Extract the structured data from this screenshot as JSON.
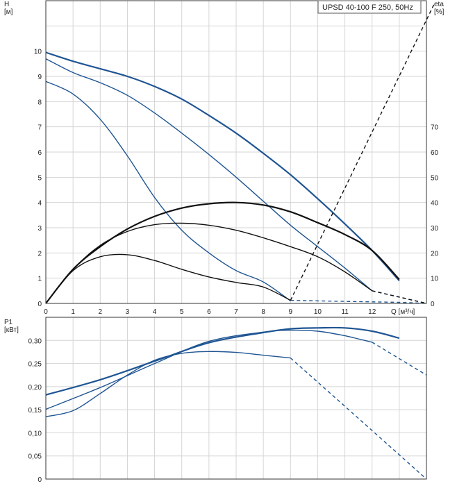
{
  "title_box": "UPSD 40-100 F 250, 50Hz",
  "colors": {
    "head": "#1f5593",
    "eta": "#111111",
    "power": "#1f5593",
    "grid": "#d4d4d4"
  },
  "chart_data": [
    {
      "type": "line",
      "panel": "upper",
      "ylabel_left": "H",
      "ylabel_left_unit": "[м]",
      "ylabel_right": "eta",
      "ylabel_right_unit": "[%]",
      "xlabel": "Q [м³/ч]",
      "xlim": [
        0,
        14
      ],
      "ylim": [
        0,
        12
      ],
      "ylim_right": [
        0,
        120
      ],
      "x_ticks": [
        "0",
        "1",
        "2",
        "3",
        "4",
        "5",
        "6",
        "7",
        "8",
        "9",
        "10",
        "11",
        "12"
      ],
      "y_ticks": [
        "0",
        "1",
        "2",
        "3",
        "4",
        "5",
        "6",
        "7",
        "8",
        "9",
        "10"
      ],
      "y_right_ticks": [
        "0",
        "10",
        "20",
        "30",
        "40",
        "50",
        "60",
        "70"
      ],
      "grid": true,
      "series": [
        {
          "kind": "head",
          "speed": "high",
          "style": "solid",
          "points": [
            [
              0,
              9.95
            ],
            [
              1,
              9.6
            ],
            [
              2,
              9.3
            ],
            [
              3,
              9.0
            ],
            [
              4,
              8.6
            ],
            [
              5,
              8.1
            ],
            [
              6,
              7.45
            ],
            [
              7,
              6.75
            ],
            [
              8,
              5.95
            ],
            [
              9,
              5.1
            ],
            [
              10,
              4.15
            ],
            [
              11,
              3.15
            ],
            [
              12,
              2.1
            ],
            [
              13,
              0.9
            ]
          ]
        },
        {
          "kind": "head",
          "speed": "medium",
          "style": "solid",
          "points": [
            [
              0,
              9.7
            ],
            [
              1,
              9.15
            ],
            [
              2,
              8.75
            ],
            [
              3,
              8.25
            ],
            [
              4,
              7.55
            ],
            [
              5,
              6.75
            ],
            [
              6,
              5.9
            ],
            [
              7,
              5.0
            ],
            [
              8,
              4.05
            ],
            [
              9,
              3.1
            ],
            [
              10,
              2.25
            ],
            [
              11,
              1.4
            ],
            [
              12,
              0.5
            ]
          ]
        },
        {
          "kind": "head",
          "speed": "low",
          "style": "solid",
          "points": [
            [
              0,
              8.8
            ],
            [
              1,
              8.3
            ],
            [
              2,
              7.3
            ],
            [
              3,
              5.85
            ],
            [
              4,
              4.2
            ],
            [
              5,
              2.9
            ],
            [
              6,
              2.0
            ],
            [
              7,
              1.3
            ],
            [
              8,
              0.85
            ],
            [
              9,
              0.1
            ]
          ]
        },
        {
          "kind": "head",
          "speed": "medium",
          "style": "dashed",
          "points": [
            [
              12,
              0.5
            ],
            [
              13,
              0.25
            ],
            [
              14,
              0.0
            ]
          ]
        },
        {
          "kind": "head",
          "speed": "low",
          "style": "dashed",
          "points": [
            [
              9,
              0.12
            ],
            [
              11,
              0.08
            ],
            [
              13,
              0.04
            ],
            [
              14,
              0.0
            ]
          ]
        },
        {
          "kind": "eta",
          "speed": "high",
          "style": "solid",
          "points": [
            [
              0,
              0
            ],
            [
              1,
              13.5
            ],
            [
              2,
              22.5
            ],
            [
              3,
              29.5
            ],
            [
              4,
              34.5
            ],
            [
              5,
              37.8
            ],
            [
              6,
              39.5
            ],
            [
              7,
              40.0
            ],
            [
              8,
              39.0
            ],
            [
              9,
              36.3
            ],
            [
              10,
              32.0
            ],
            [
              11,
              27.3
            ],
            [
              12,
              21.0
            ],
            [
              13,
              9.5
            ]
          ]
        },
        {
          "kind": "eta",
          "speed": "medium",
          "style": "solid",
          "points": [
            [
              0,
              0
            ],
            [
              1,
              13.5
            ],
            [
              2,
              23.0
            ],
            [
              3,
              28.5
            ],
            [
              4,
              31.2
            ],
            [
              5,
              31.8
            ],
            [
              6,
              31.0
            ],
            [
              7,
              29.0
            ],
            [
              8,
              26.0
            ],
            [
              9,
              22.5
            ],
            [
              10,
              18.5
            ],
            [
              11,
              12.5
            ],
            [
              12,
              5.0
            ]
          ]
        },
        {
          "kind": "eta",
          "speed": "low",
          "style": "solid",
          "points": [
            [
              0,
              0
            ],
            [
              1,
              13.0
            ],
            [
              2,
              18.5
            ],
            [
              3,
              19.3
            ],
            [
              4,
              17.0
            ],
            [
              5,
              13.5
            ],
            [
              6,
              10.5
            ],
            [
              7,
              8.3
            ],
            [
              8,
              6.5
            ],
            [
              9,
              1.2
            ]
          ]
        },
        {
          "kind": "eta",
          "speed": "high",
          "style": "dashed",
          "points": [
            [
              12,
              5.0
            ],
            [
              13,
              2.5
            ],
            [
              14,
              0.0
            ]
          ]
        },
        {
          "kind": "system",
          "style": "dashed",
          "points": [
            [
              9,
              0.12
            ],
            [
              14.3,
              11.9
            ]
          ]
        }
      ]
    },
    {
      "type": "line",
      "panel": "lower",
      "ylabel": "P1",
      "ylabel_unit": "[кВт]",
      "xlim": [
        0,
        14
      ],
      "ylim": [
        0,
        0.35
      ],
      "y_ticks": [
        "0",
        "0,05",
        "0,10",
        "0,15",
        "0,20",
        "0,25",
        "0,30"
      ],
      "grid": true,
      "series": [
        {
          "kind": "power",
          "speed": "high",
          "style": "solid",
          "points": [
            [
              0,
              0.182
            ],
            [
              2,
              0.215
            ],
            [
              4,
              0.255
            ],
            [
              6,
              0.295
            ],
            [
              8,
              0.317
            ],
            [
              9,
              0.325
            ],
            [
              10,
              0.327
            ],
            [
              11,
              0.327
            ],
            [
              12,
              0.32
            ],
            [
              13,
              0.305
            ]
          ]
        },
        {
          "kind": "power",
          "speed": "medium",
          "style": "solid",
          "points": [
            [
              0,
              0.151
            ],
            [
              2,
              0.198
            ],
            [
              4,
              0.25
            ],
            [
              6,
              0.298
            ],
            [
              8,
              0.318
            ],
            [
              9,
              0.322
            ],
            [
              10,
              0.32
            ],
            [
              11,
              0.31
            ],
            [
              12,
              0.296
            ]
          ]
        },
        {
          "kind": "power",
          "speed": "low",
          "style": "solid",
          "points": [
            [
              0,
              0.135
            ],
            [
              1,
              0.148
            ],
            [
              2,
              0.185
            ],
            [
              3,
              0.225
            ],
            [
              4,
              0.257
            ],
            [
              5,
              0.272
            ],
            [
              6,
              0.276
            ],
            [
              7,
              0.274
            ],
            [
              8,
              0.268
            ],
            [
              9,
              0.262
            ]
          ]
        },
        {
          "kind": "power",
          "speed": "medium",
          "style": "dashed",
          "points": [
            [
              12,
              0.296
            ],
            [
              14,
              0.225
            ]
          ]
        },
        {
          "kind": "power",
          "speed": "low",
          "style": "dashed",
          "points": [
            [
              9,
              0.262
            ],
            [
              12,
              0.105
            ],
            [
              14,
              0.0
            ]
          ]
        }
      ]
    }
  ]
}
